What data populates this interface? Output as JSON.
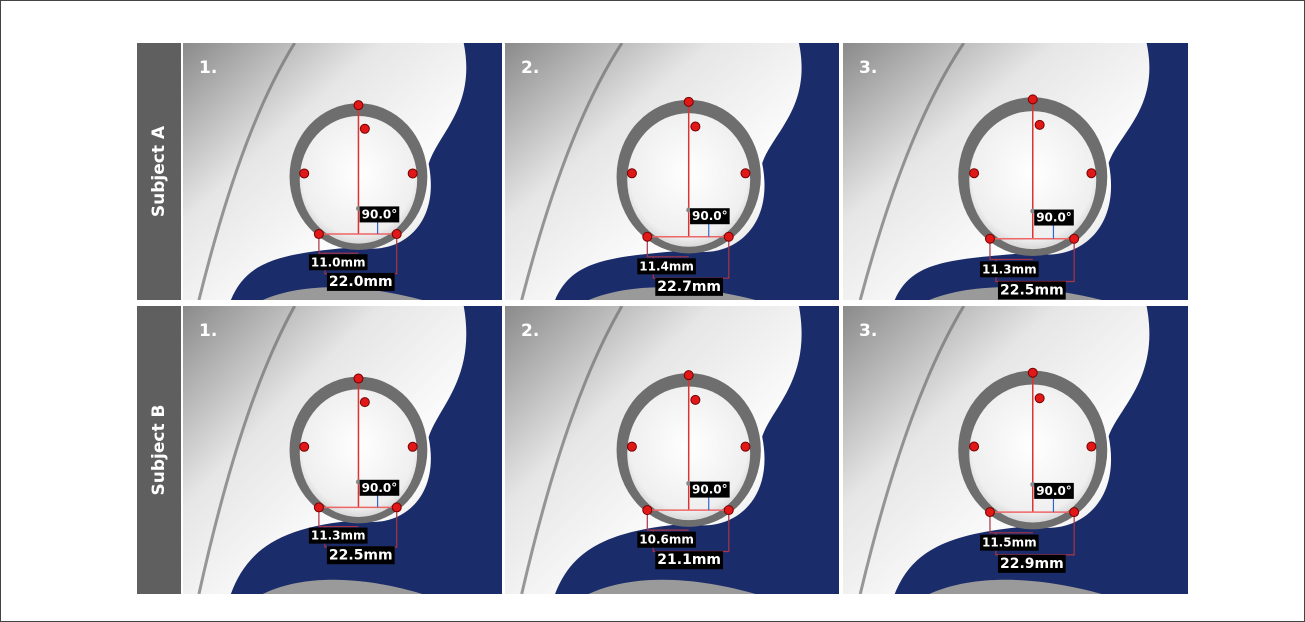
{
  "rows": [
    {
      "label": "Subject A",
      "panels": [
        {
          "number": "1.",
          "angle": "90.0°",
          "short": "11.0mm",
          "long": "22.0mm"
        },
        {
          "number": "2.",
          "angle": "90.0°",
          "short": "11.4mm",
          "long": "22.7mm"
        },
        {
          "number": "3.",
          "angle": "90.0°",
          "short": "11.3mm",
          "long": "22.5mm"
        }
      ]
    },
    {
      "label": "Subject B",
      "panels": [
        {
          "number": "1.",
          "angle": "90.0°",
          "short": "11.3mm",
          "long": "22.5mm"
        },
        {
          "number": "2.",
          "angle": "90.0°",
          "short": "10.6mm",
          "long": "21.1mm"
        },
        {
          "number": "3.",
          "angle": "90.0°",
          "short": "11.5mm",
          "long": "22.9mm"
        }
      ]
    }
  ]
}
